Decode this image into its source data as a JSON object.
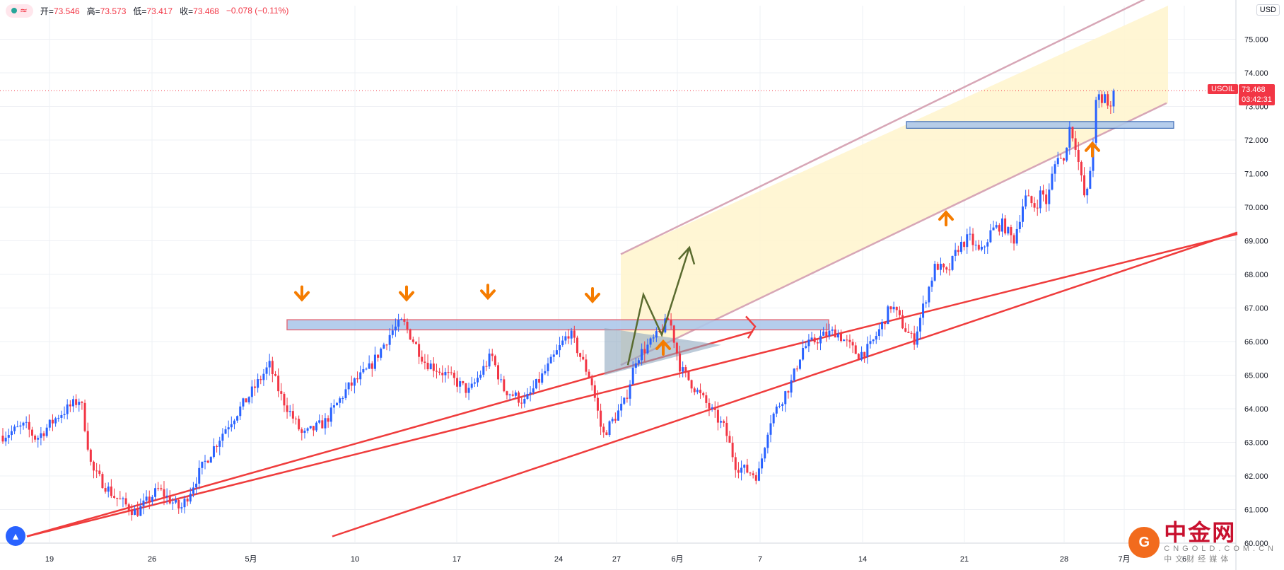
{
  "toolbar": {
    "open_label": "开",
    "open_value": "73.546",
    "high_label": "高",
    "high_value": "73.573",
    "low_label": "低",
    "low_value": "73.417",
    "close_label": "收",
    "close_value": "73.468",
    "change": "−0.078 (−0.11%)",
    "indicator_icon": "wave-icon"
  },
  "currency": "USD",
  "symbol": "USOIL",
  "last_price": "73.468",
  "countdown": "03:42:31",
  "watermark": {
    "main": "中金网",
    "domain": "CNGOLD.COM.CN",
    "sub": "中文财经媒体"
  },
  "colors": {
    "up": "#2962ff",
    "down": "#f23645",
    "channel_fill": "#fff4cc",
    "channel_line": "#d7a6b6",
    "trendline": "#ef3c3c",
    "arrow": "#f57c00",
    "zone_fill": "#aec8ea",
    "zone_border": "#e06070"
  },
  "chart_data": {
    "type": "candlestick",
    "symbol": "USOIL",
    "timeframe": "4H",
    "ylim": [
      60,
      76
    ],
    "y_ticks": [
      "60.000",
      "61.000",
      "62.000",
      "63.000",
      "64.000",
      "65.000",
      "66.000",
      "67.000",
      "68.000",
      "69.000",
      "70.000",
      "71.000",
      "72.000",
      "73.000",
      "74.000",
      "75.000"
    ],
    "x_tick_labels": [
      "19",
      "26",
      "5月",
      "10",
      "17",
      "24",
      "27",
      "6月",
      "7",
      "14",
      "21",
      "28",
      "7月",
      "6"
    ],
    "last_close": 73.468,
    "price_path": [
      [
        0,
        63.2
      ],
      [
        0.02,
        63.5
      ],
      [
        0.03,
        63.1
      ],
      [
        0.05,
        63.8
      ],
      [
        0.07,
        64.3
      ],
      [
        0.08,
        62.2
      ],
      [
        0.1,
        61.4
      ],
      [
        0.12,
        60.9
      ],
      [
        0.14,
        61.6
      ],
      [
        0.16,
        61.0
      ],
      [
        0.18,
        62.3
      ],
      [
        0.2,
        63.4
      ],
      [
        0.22,
        64.3
      ],
      [
        0.24,
        65.3
      ],
      [
        0.25,
        64.4
      ],
      [
        0.27,
        63.2
      ],
      [
        0.29,
        63.6
      ],
      [
        0.31,
        64.6
      ],
      [
        0.33,
        65.2
      ],
      [
        0.35,
        66.3
      ],
      [
        0.36,
        66.6
      ],
      [
        0.38,
        65.4
      ],
      [
        0.4,
        65.0
      ],
      [
        0.42,
        64.5
      ],
      [
        0.44,
        65.6
      ],
      [
        0.45,
        64.6
      ],
      [
        0.47,
        64.2
      ],
      [
        0.49,
        65.2
      ],
      [
        0.51,
        66.3
      ],
      [
        0.53,
        64.8
      ],
      [
        0.54,
        63.2
      ],
      [
        0.56,
        64.2
      ],
      [
        0.57,
        65.5
      ],
      [
        0.59,
        66.2
      ],
      [
        0.6,
        66.7
      ],
      [
        0.61,
        65.2
      ],
      [
        0.63,
        64.3
      ],
      [
        0.65,
        63.4
      ],
      [
        0.66,
        62.3
      ],
      [
        0.68,
        62.0
      ],
      [
        0.69,
        63.6
      ],
      [
        0.71,
        64.8
      ],
      [
        0.72,
        65.8
      ],
      [
        0.74,
        66.2
      ],
      [
        0.75,
        66.3
      ],
      [
        0.77,
        65.6
      ],
      [
        0.78,
        65.8
      ],
      [
        0.79,
        66.4
      ],
      [
        0.8,
        67.1
      ],
      [
        0.81,
        66.5
      ],
      [
        0.82,
        66.0
      ],
      [
        0.83,
        67.2
      ],
      [
        0.84,
        68.3
      ],
      [
        0.85,
        68.0
      ],
      [
        0.86,
        68.8
      ],
      [
        0.87,
        69.1
      ],
      [
        0.88,
        68.6
      ],
      [
        0.89,
        69.3
      ],
      [
        0.9,
        69.5
      ],
      [
        0.91,
        69.0
      ],
      [
        0.92,
        70.3
      ],
      [
        0.93,
        70.0
      ],
      [
        0.935,
        70.5
      ],
      [
        0.94,
        70.1
      ],
      [
        0.945,
        71.0
      ],
      [
        0.95,
        71.6
      ],
      [
        0.955,
        71.3
      ],
      [
        0.96,
        72.4
      ],
      [
        0.965,
        72.0
      ],
      [
        0.97,
        71.0
      ],
      [
        0.975,
        70.1
      ],
      [
        0.98,
        71.4
      ],
      [
        0.985,
        73.4
      ],
      [
        0.99,
        73.0
      ],
      [
        0.993,
        73.6
      ],
      [
        0.996,
        72.6
      ],
      [
        1.0,
        73.468
      ]
    ],
    "annotations": {
      "resistance_zone": [
        66.35,
        66.65
      ],
      "support_zone": [
        72.35,
        72.55
      ],
      "ascending_channel": "yes",
      "rising_trendlines": 2,
      "orange_down_arrows": 4,
      "orange_up_arrows": 3
    }
  }
}
